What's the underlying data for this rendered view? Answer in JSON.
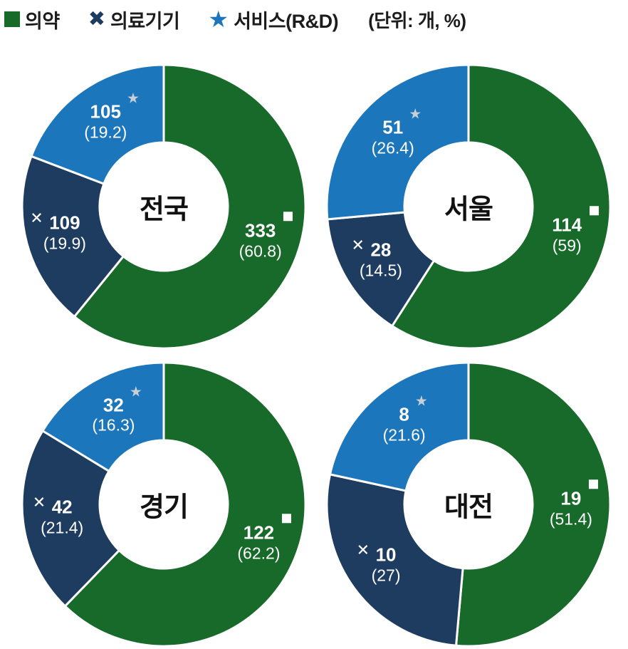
{
  "legend": {
    "items": [
      {
        "label": "의약",
        "marker": "square",
        "color": "#176A29"
      },
      {
        "label": "의료기기",
        "marker": "x",
        "color": "#1E3C60"
      },
      {
        "label": "서비스(R&D)",
        "marker": "star",
        "color": "#1B76BC"
      }
    ],
    "units_note": "(단위: 개, %)"
  },
  "chart_data": {
    "type": "pie",
    "variant": "donut",
    "unit_note": "(단위: 개, %)",
    "legend_position": "top-left",
    "series": [
      {
        "name": "의약",
        "color": "#176A29",
        "marker": "square",
        "marker_color": "#ffffff"
      },
      {
        "name": "의료기기",
        "color": "#1E3C60",
        "marker": "x",
        "marker_color": "#ffffff"
      },
      {
        "name": "서비스(R&D)",
        "color": "#1B76BC",
        "marker": "star",
        "marker_color": "#C9CFD7"
      }
    ],
    "charts": [
      {
        "region": "전국",
        "values": [
          333,
          109,
          105
        ],
        "pcts": [
          60.8,
          19.9,
          19.2
        ]
      },
      {
        "region": "서울",
        "values": [
          114,
          28,
          51
        ],
        "pcts": [
          59,
          14.5,
          26.4
        ]
      },
      {
        "region": "경기",
        "values": [
          122,
          42,
          32
        ],
        "pcts": [
          62.2,
          21.4,
          16.3
        ]
      },
      {
        "region": "대전",
        "values": [
          19,
          10,
          8
        ],
        "pcts": [
          51.4,
          27,
          21.6
        ]
      }
    ]
  }
}
